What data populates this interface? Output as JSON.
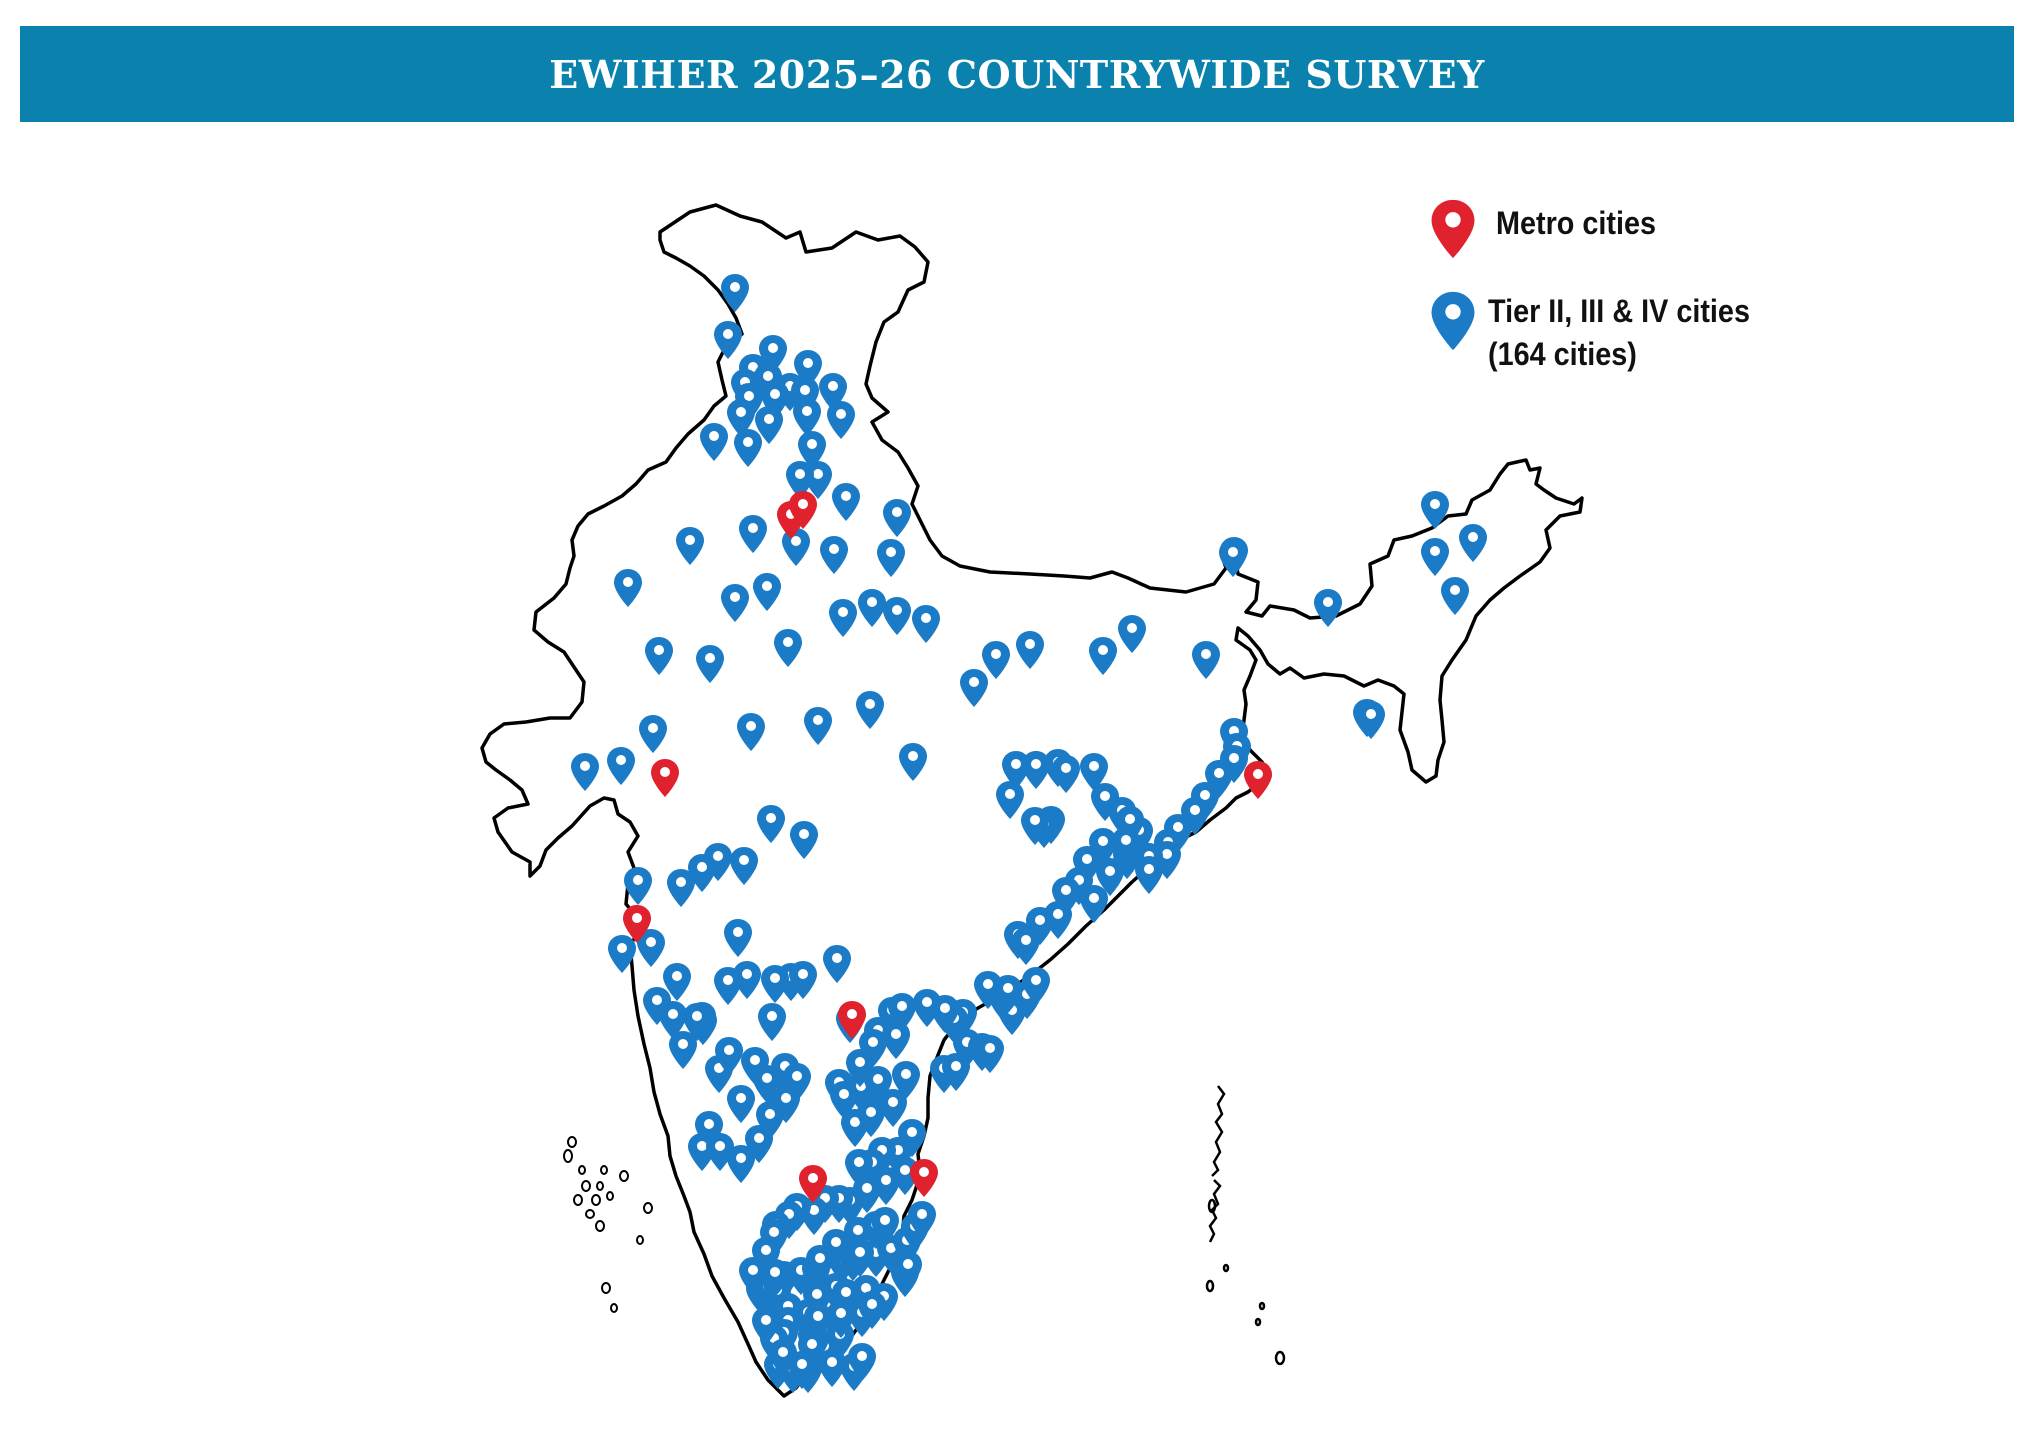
{
  "banner": {
    "title": "EWIHER 2025–26 COUNTRYWIDE SURVEY"
  },
  "legend": {
    "metro_label": "Metro cities",
    "tier_label": "Tier II, III & IV cities",
    "tier_count": "(164 cities)"
  },
  "colors": {
    "banner": "#0a82ad",
    "metro_pin": "#e0222e",
    "tier_pin": "#1b7bc6",
    "border": "#000000"
  },
  "icons": {
    "metro": "map-pin-icon",
    "tier": "map-pin-icon"
  }
}
